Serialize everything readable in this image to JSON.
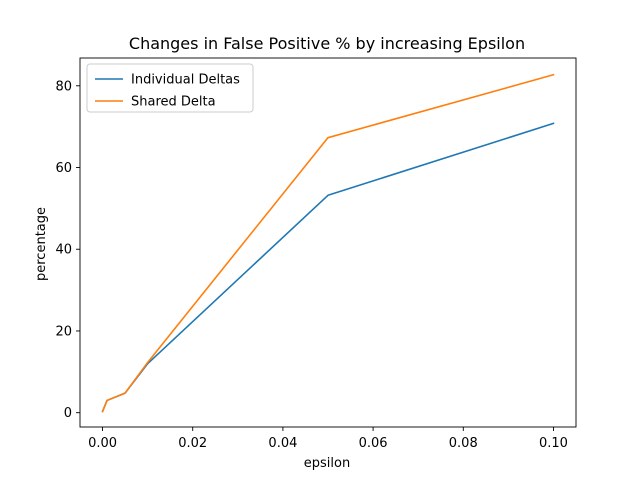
{
  "chart_data": {
    "type": "line",
    "title": "Changes in False Positive % by increasing Epsilon",
    "xlabel": "epsilon",
    "ylabel": "percentage",
    "xlim": [
      -0.005,
      0.105
    ],
    "ylim": [
      -3.5,
      86.8
    ],
    "xticks": [
      0.0,
      0.02,
      0.04,
      0.06,
      0.08,
      0.1
    ],
    "xtick_labels": [
      "0.00",
      "0.02",
      "0.04",
      "0.06",
      "0.08",
      "0.10"
    ],
    "yticks": [
      0,
      20,
      40,
      60,
      80
    ],
    "ytick_labels": [
      "0",
      "20",
      "40",
      "60",
      "80"
    ],
    "grid": false,
    "legend_position": "top-left",
    "x": [
      0.0,
      0.001,
      0.005,
      0.01,
      0.05,
      0.1
    ],
    "series": [
      {
        "name": "Individual Deltas",
        "color": "#1f77b4",
        "values": [
          0.3,
          3.0,
          4.8,
          12.0,
          53.2,
          70.8
        ]
      },
      {
        "name": "Shared Delta",
        "color": "#ff7f0e",
        "values": [
          0.3,
          3.0,
          4.8,
          12.3,
          67.3,
          82.7
        ]
      }
    ]
  }
}
